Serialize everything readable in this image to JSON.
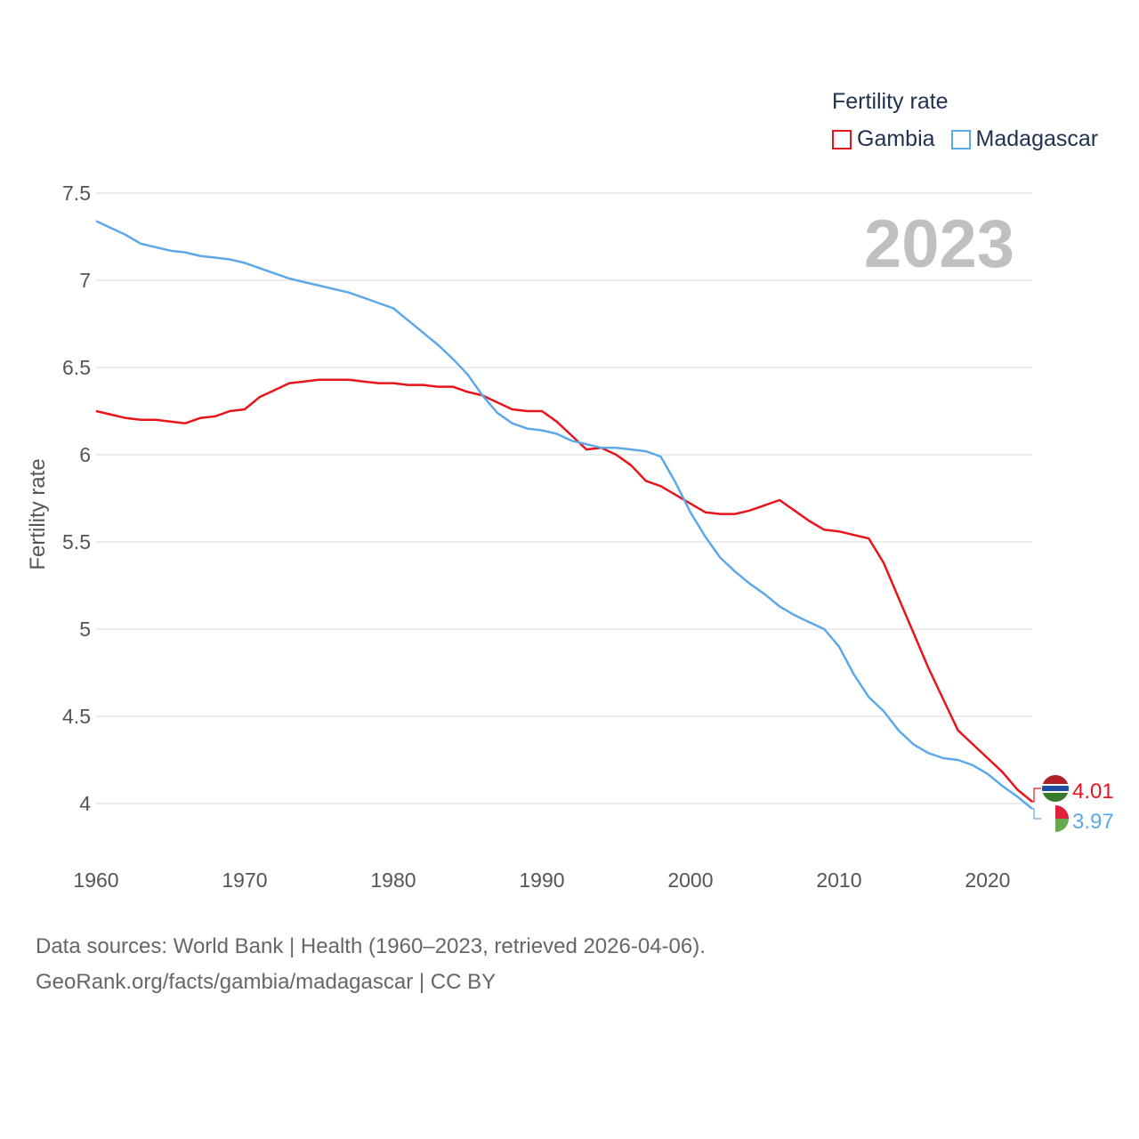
{
  "legend": {
    "title": "Fertility rate",
    "items": [
      {
        "name": "Gambia",
        "color": "#e8141c"
      },
      {
        "name": "Madagascar",
        "color": "#5da8e8"
      }
    ]
  },
  "footer": {
    "line1": "Data sources: World Bank | Health (1960–2023, retrieved 2026-04-06).",
    "line2": "GeoRank.org/facts/gambia/madagascar | CC BY"
  },
  "chart_data": {
    "type": "line",
    "title": "Fertility rate",
    "year_label": "2023",
    "xlabel": "",
    "ylabel": "Fertility rate",
    "xlim": [
      1960,
      2023
    ],
    "ylim": [
      3.85,
      7.5
    ],
    "x_ticks": [
      1960,
      1970,
      1980,
      1990,
      2000,
      2010,
      2020
    ],
    "y_ticks": [
      {
        "value": 4,
        "label": "4"
      },
      {
        "value": 4.5,
        "label": "4.5"
      },
      {
        "value": 5,
        "label": "5"
      },
      {
        "value": 5.5,
        "label": "5.5"
      },
      {
        "value": 6,
        "label": "6"
      },
      {
        "value": 6.5,
        "label": "6.5"
      },
      {
        "value": 7,
        "label": "7"
      },
      {
        "value": 7.5,
        "label": "7.5"
      }
    ],
    "grid": true,
    "legend_position": "top-right",
    "x": [
      1960,
      1961,
      1962,
      1963,
      1964,
      1965,
      1966,
      1967,
      1968,
      1969,
      1970,
      1971,
      1972,
      1973,
      1974,
      1975,
      1976,
      1977,
      1978,
      1979,
      1980,
      1981,
      1982,
      1983,
      1984,
      1985,
      1986,
      1987,
      1988,
      1989,
      1990,
      1991,
      1992,
      1993,
      1994,
      1995,
      1996,
      1997,
      1998,
      1999,
      2000,
      2001,
      2002,
      2003,
      2004,
      2005,
      2006,
      2007,
      2008,
      2009,
      2010,
      2011,
      2012,
      2013,
      2014,
      2015,
      2016,
      2017,
      2018,
      2019,
      2020,
      2021,
      2022,
      2023
    ],
    "series": [
      {
        "name": "Gambia",
        "color": "#e8141c",
        "end_label": "4.01",
        "values": [
          6.25,
          6.23,
          6.21,
          6.2,
          6.2,
          6.19,
          6.18,
          6.21,
          6.22,
          6.25,
          6.26,
          6.33,
          6.37,
          6.41,
          6.42,
          6.43,
          6.43,
          6.43,
          6.42,
          6.41,
          6.41,
          6.4,
          6.4,
          6.39,
          6.39,
          6.36,
          6.34,
          6.3,
          6.26,
          6.25,
          6.25,
          6.19,
          6.11,
          6.03,
          6.04,
          6.0,
          5.94,
          5.85,
          5.82,
          5.77,
          5.72,
          5.67,
          5.66,
          5.66,
          5.68,
          5.71,
          5.74,
          5.68,
          5.62,
          5.57,
          5.56,
          5.54,
          5.52,
          5.38,
          5.18,
          4.98,
          4.78,
          4.6,
          4.42,
          4.34,
          4.26,
          4.18,
          4.08,
          4.01
        ]
      },
      {
        "name": "Madagascar",
        "color": "#5da8e8",
        "end_label": "3.97",
        "values": [
          7.34,
          7.3,
          7.26,
          7.21,
          7.19,
          7.17,
          7.16,
          7.14,
          7.13,
          7.12,
          7.1,
          7.07,
          7.04,
          7.01,
          6.99,
          6.97,
          6.95,
          6.93,
          6.9,
          6.87,
          6.84,
          6.77,
          6.7,
          6.63,
          6.55,
          6.46,
          6.34,
          6.24,
          6.18,
          6.15,
          6.14,
          6.12,
          6.08,
          6.06,
          6.04,
          6.04,
          6.03,
          6.02,
          5.99,
          5.84,
          5.67,
          5.53,
          5.41,
          5.33,
          5.26,
          5.2,
          5.13,
          5.08,
          5.04,
          5.0,
          4.9,
          4.74,
          4.61,
          4.53,
          4.42,
          4.34,
          4.29,
          4.26,
          4.25,
          4.22,
          4.17,
          4.1,
          4.04,
          3.97
        ]
      }
    ]
  }
}
